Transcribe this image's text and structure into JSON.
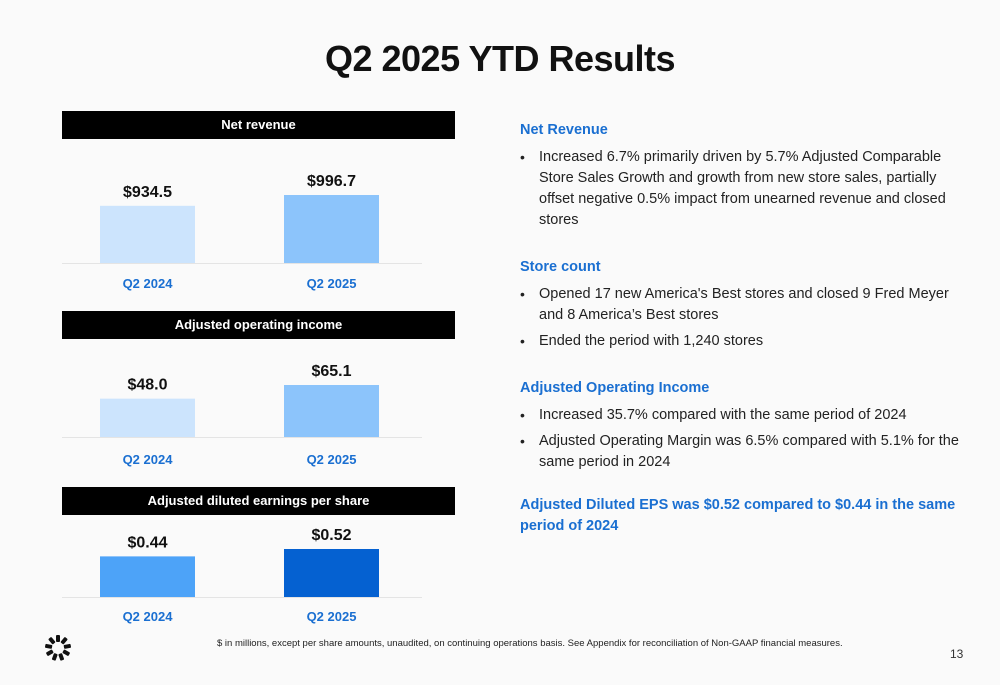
{
  "title": "Q2 2025 YTD Results",
  "colors": {
    "accent_blue": "#1a6fd1",
    "bar_light": "#cce4fd",
    "bar_mid": "#8cc4fb",
    "bar_bright": "#4da3f8",
    "bar_dark": "#0561d1",
    "category_text": "#1a6fd1"
  },
  "chart_data": [
    {
      "type": "bar",
      "title": "Net revenue",
      "categories": [
        "Q2 2024",
        "Q2 2025"
      ],
      "values": [
        934.5,
        996.7
      ],
      "value_labels": [
        "$934.5",
        "$996.7"
      ],
      "bar_colors": [
        "#cce4fd",
        "#8cc4fb"
      ]
    },
    {
      "type": "bar",
      "title": "Adjusted operating income",
      "categories": [
        "Q2 2024",
        "Q2 2025"
      ],
      "values": [
        48.0,
        65.1
      ],
      "value_labels": [
        "$48.0",
        "$65.1"
      ],
      "bar_colors": [
        "#cce4fd",
        "#8cc4fb"
      ]
    },
    {
      "type": "bar",
      "title": "Adjusted diluted earnings per share",
      "categories": [
        "Q2 2024",
        "Q2 2025"
      ],
      "values": [
        0.44,
        0.52
      ],
      "value_labels": [
        "$0.44",
        "$0.52"
      ],
      "bar_colors": [
        "#4da3f8",
        "#0561d1"
      ]
    }
  ],
  "commentary": {
    "net_revenue": {
      "heading": "Net Revenue",
      "bullets": [
        "Increased 6.7% primarily driven by 5.7% Adjusted Comparable Store Sales Growth and growth from new store sales, partially offset negative 0.5% impact from unearned revenue and closed stores"
      ]
    },
    "store_count": {
      "heading": "Store count",
      "bullets": [
        "Opened 17 new America's Best stores and closed 9 Fred Meyer and 8 America’s Best stores",
        "Ended the period with 1,240 stores"
      ]
    },
    "operating_income": {
      "heading": "Adjusted Operating Income",
      "bullets": [
        "Increased 35.7% compared with the same period of 2024",
        "Adjusted Operating Margin was 6.5% compared with 5.1% for the same period in 2024"
      ]
    },
    "eps_statement": "Adjusted Diluted EPS was $0.52 compared to $0.44 in the same period of 2024"
  },
  "footnote": "$ in millions, except per share amounts, unaudited, on continuing operations basis. See Appendix for reconciliation of Non-GAAP financial measures.",
  "page_number": "13",
  "logo_icon": "company-logo-icon"
}
